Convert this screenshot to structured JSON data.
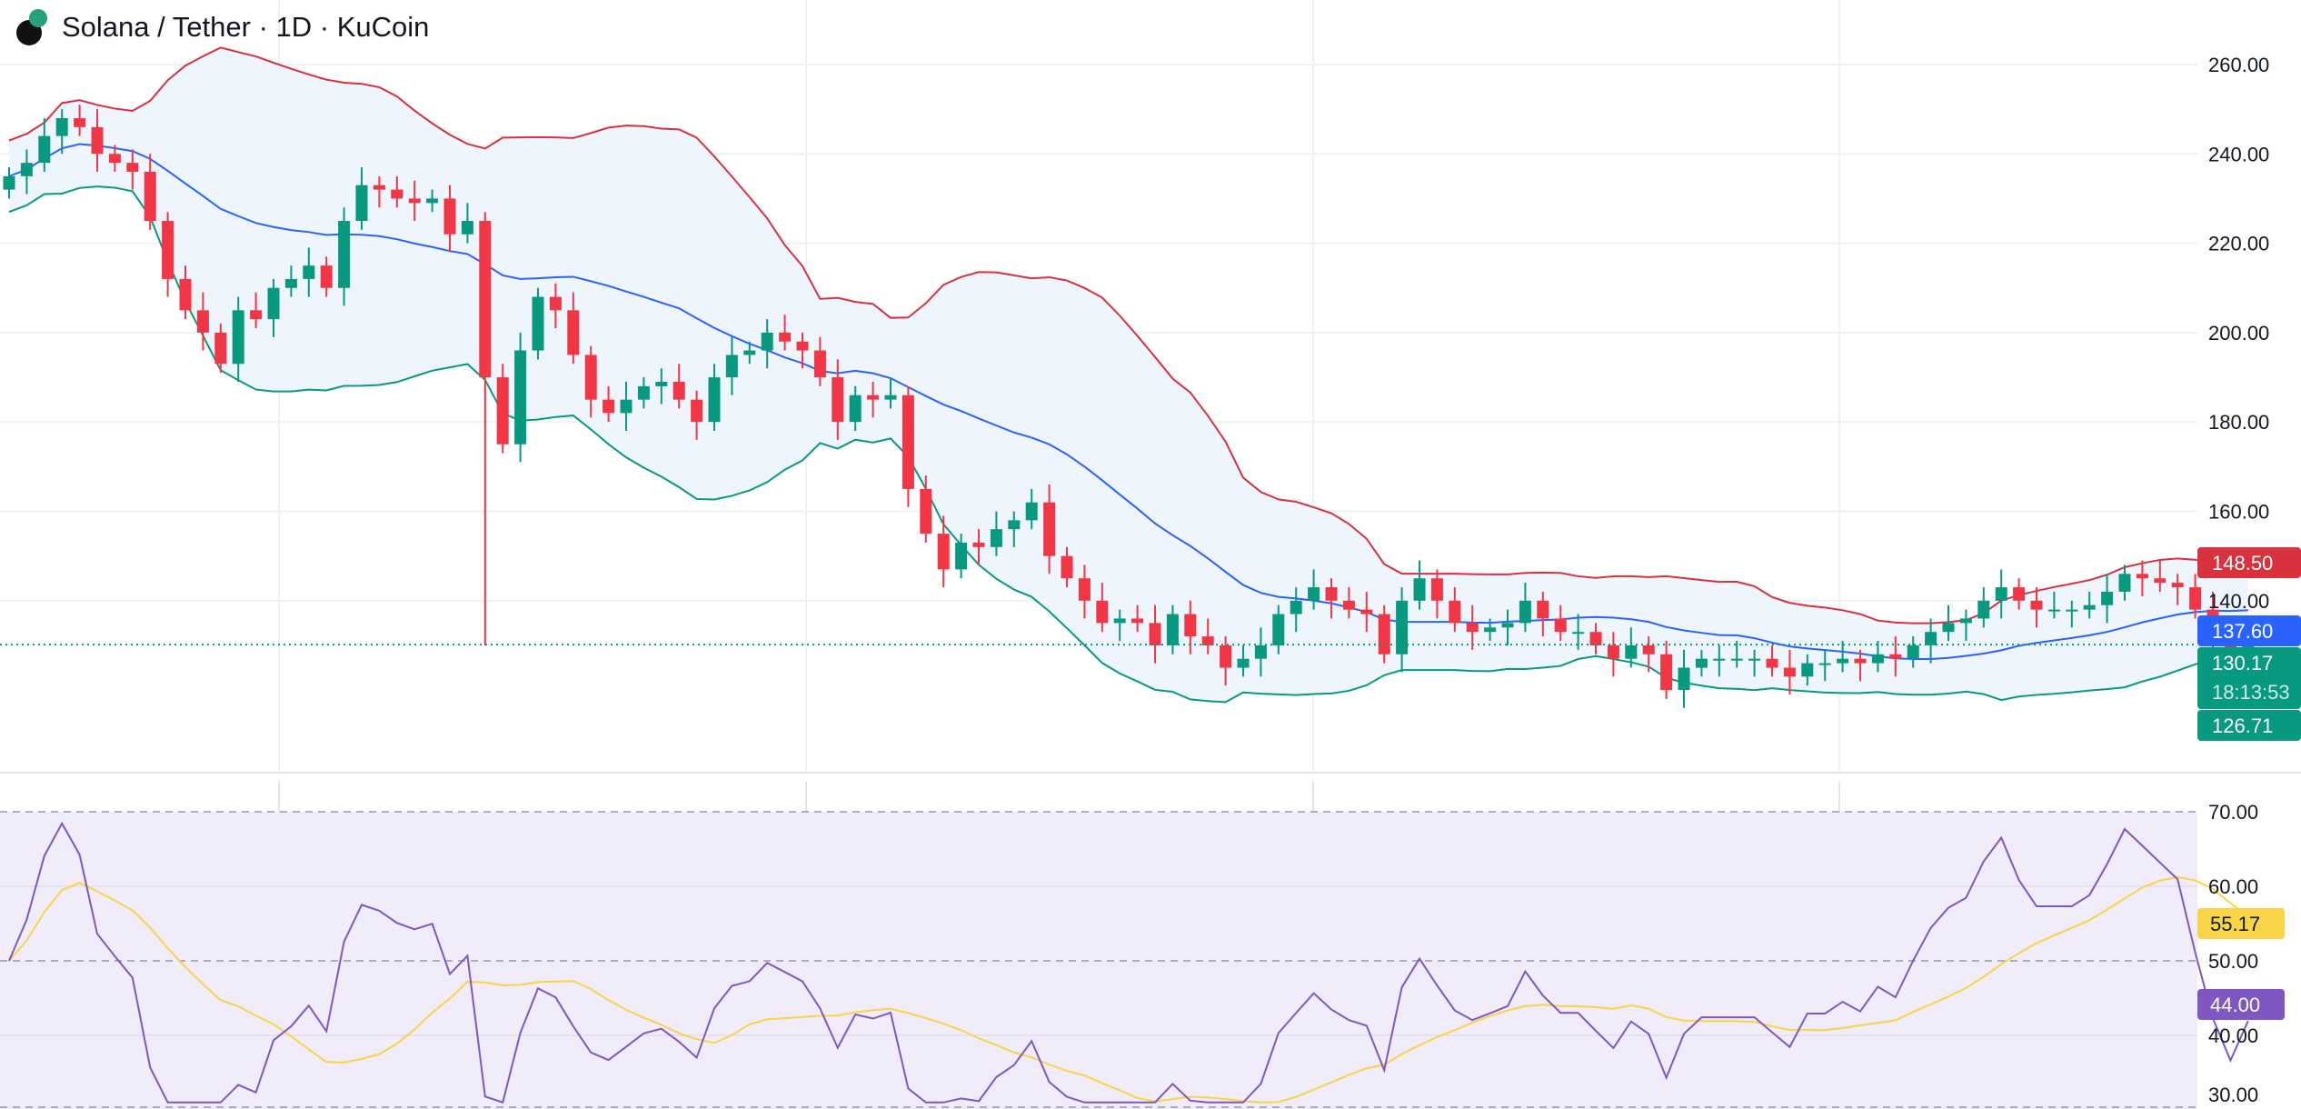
{
  "header": {
    "title": "Solana / Tether · 1D · KuCoin",
    "icons": [
      "solana-coin-icon",
      "tether-coin-icon"
    ]
  },
  "chart_data": [
    {
      "type": "candlestick",
      "title": "Solana / Tether · 1D · KuCoin",
      "ylim": [
        115,
        265
      ],
      "y_ticks": [
        "260.00",
        "240.00",
        "220.00",
        "200.00",
        "180.00",
        "160.00",
        "140.00"
      ],
      "grid": true,
      "colors": {
        "up": "#089981",
        "down": "#f23645",
        "bb_upper": "#d8323f",
        "bb_basis": "#2962ff",
        "bb_lower": "#089981",
        "bb_fill": "#eef5fd"
      },
      "close": [
        235,
        238,
        244,
        248,
        246,
        240,
        238,
        236,
        225,
        212,
        205,
        200,
        193,
        205,
        203,
        210,
        212,
        215,
        210,
        225,
        233,
        232,
        230,
        229,
        230,
        222,
        225,
        190,
        175,
        196,
        208,
        205,
        195,
        185,
        182,
        185,
        188,
        189,
        185,
        180,
        190,
        195,
        196,
        200,
        198,
        196,
        190,
        180,
        186,
        185,
        186,
        165,
        155,
        147,
        153,
        152,
        156,
        158,
        162,
        150,
        145,
        140,
        135,
        136,
        135,
        130,
        137,
        132,
        130,
        125,
        127,
        130,
        137,
        140,
        143,
        140,
        138,
        137,
        128,
        140,
        145,
        140,
        135,
        133,
        134,
        135,
        140,
        136,
        133,
        133,
        130,
        127,
        130,
        128,
        120,
        125,
        127,
        127,
        127,
        127,
        125,
        123,
        126,
        126,
        127,
        126,
        128,
        127,
        130,
        133,
        135,
        136,
        140,
        143,
        140,
        138,
        138,
        138,
        139,
        142,
        146,
        145,
        144,
        143,
        138,
        132,
        127,
        130.17
      ],
      "wick_low_note": "130",
      "last_labels": {
        "bb_upper": "148.50",
        "bb_basis": "137.60",
        "price": "130.17",
        "countdown": "18:13:53",
        "bb_lower": "126.71"
      }
    },
    {
      "type": "line",
      "ylim": [
        30,
        72
      ],
      "y_ticks": [
        "70.00",
        "60.00",
        "50.00",
        "40.00",
        "30.00"
      ],
      "levels": [
        70,
        50,
        30
      ],
      "colors": {
        "rsi": "#7e57c2",
        "rsi_ma": "#f7d547",
        "band_fill": "#f1ecf9"
      },
      "last_labels": {
        "rsi_ma": "55.17",
        "rsi": "44.00"
      }
    }
  ]
}
